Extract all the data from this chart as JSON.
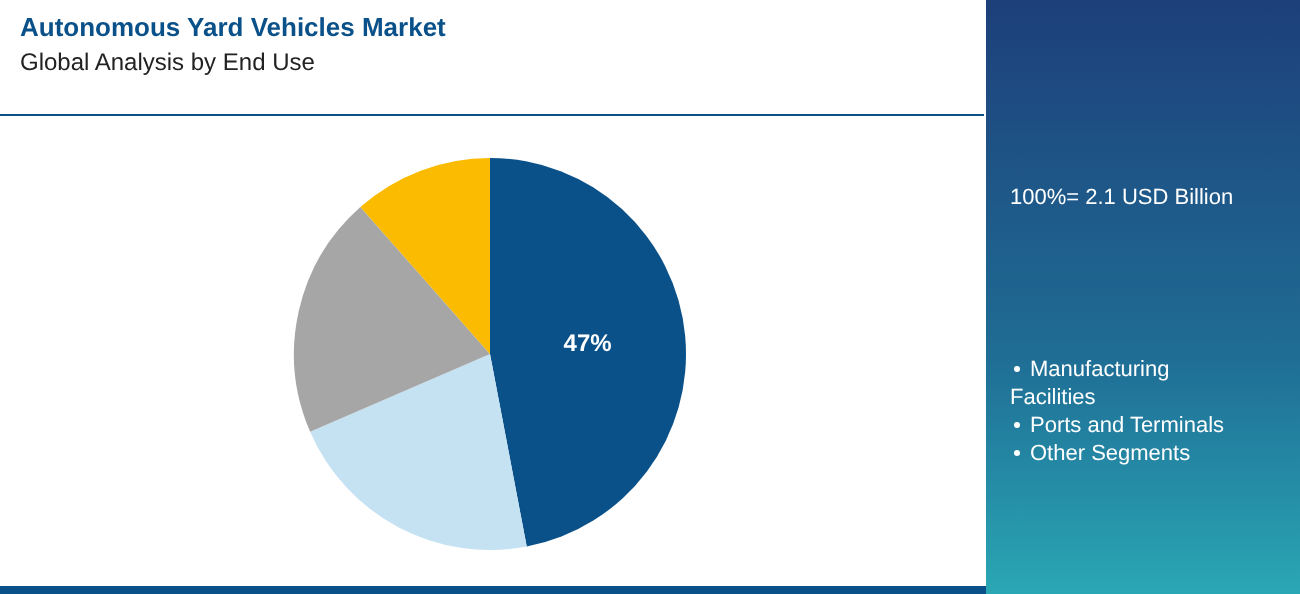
{
  "chart_data": {
    "type": "pie",
    "title": "Autonomous Yard Vehicles Market",
    "subtitle": "Global Analysis by End Use",
    "categories": [
      null,
      null,
      null,
      null
    ],
    "values": [
      47,
      21.5,
      20,
      11.5
    ],
    "colors": [
      "#0b5189",
      "#c5e2f3",
      "#a6a6a6",
      "#fbbb00"
    ],
    "value_labels": [
      "47%",
      null,
      null,
      null
    ],
    "annotations": [
      "100%= 2.1 USD Billion",
      "Manufacturing Facilities",
      "Ports and Terminals",
      "Other Segments"
    ]
  }
}
